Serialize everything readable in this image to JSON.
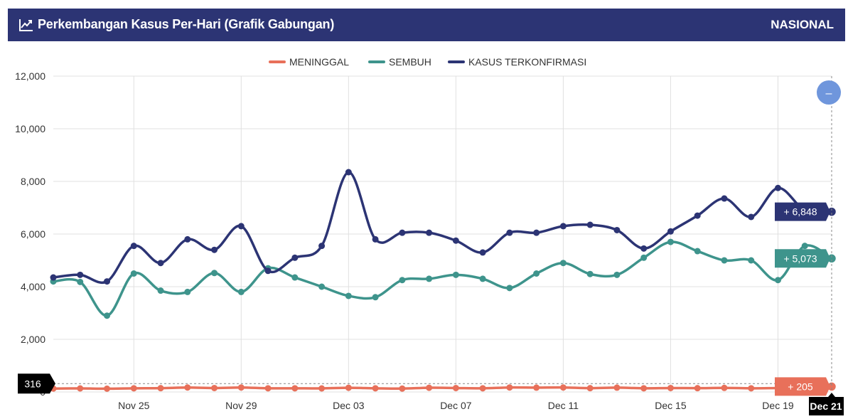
{
  "header": {
    "title": "Perkembangan Kasus Per-Hari (Grafik Gabungan)",
    "scope": "NASIONAL",
    "icon": "line-chart-icon"
  },
  "zoom_button": {
    "label": "–",
    "icon": "zoom-out-icon"
  },
  "chart_data": {
    "type": "line",
    "x": [
      "Nov 22",
      "Nov 23",
      "Nov 24",
      "Nov 25",
      "Nov 26",
      "Nov 27",
      "Nov 28",
      "Nov 29",
      "Nov 30",
      "Dec 01",
      "Dec 02",
      "Dec 03",
      "Dec 04",
      "Dec 05",
      "Dec 06",
      "Dec 07",
      "Dec 08",
      "Dec 09",
      "Dec 10",
      "Dec 11",
      "Dec 12",
      "Dec 13",
      "Dec 14",
      "Dec 15",
      "Dec 16",
      "Dec 17",
      "Dec 18",
      "Dec 19",
      "Dec 20",
      "Dec 21"
    ],
    "x_ticks": [
      "Nov 25",
      "Nov 29",
      "Dec 03",
      "Dec 07",
      "Dec 11",
      "Dec 15",
      "Dec 19"
    ],
    "crosshair_x_label": "Dec 21",
    "crosshair_y_label": "316",
    "ylim": [
      0,
      12000
    ],
    "y_ticks": [
      "0",
      "2,000",
      "4,000",
      "6,000",
      "8,000",
      "10,000",
      "12,000"
    ],
    "grid": true,
    "legend_position": "top-center",
    "series": [
      {
        "name": "MENINGGAL",
        "color": "#e8705a",
        "values": [
          130,
          135,
          125,
          140,
          145,
          170,
          150,
          170,
          140,
          140,
          135,
          160,
          140,
          130,
          160,
          150,
          140,
          170,
          165,
          170,
          145,
          165,
          140,
          150,
          145,
          155,
          140,
          150,
          160,
          205
        ],
        "tooltip": "+ 205"
      },
      {
        "name": "SEMBUH",
        "color": "#3e948c",
        "values": [
          4200,
          4180,
          2900,
          4500,
          3850,
          3800,
          4520,
          3800,
          4700,
          4350,
          4000,
          3650,
          3600,
          4250,
          4300,
          4450,
          4300,
          3950,
          4500,
          4900,
          4480,
          4450,
          5100,
          5700,
          5350,
          5000,
          5000,
          4250,
          5550,
          5073
        ],
        "tooltip": "+ 5,073"
      },
      {
        "name": "KASUS TERKONFIRMASI",
        "color": "#2c3474",
        "values": [
          4350,
          4450,
          4200,
          5550,
          4900,
          5800,
          5400,
          6300,
          4600,
          5100,
          5550,
          8350,
          5800,
          6050,
          6050,
          5750,
          5300,
          6050,
          6050,
          6300,
          6350,
          6150,
          5450,
          6100,
          6700,
          7350,
          6650,
          7750,
          6900,
          6848
        ],
        "tooltip": "+ 6,848"
      }
    ]
  }
}
